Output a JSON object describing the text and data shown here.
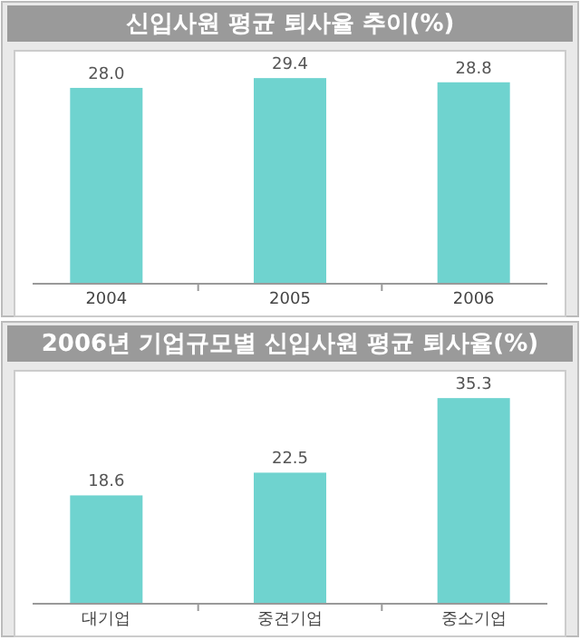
{
  "chart_data": [
    {
      "type": "bar",
      "title": "신입사원 평균 퇴사율 추이(%)",
      "categories": [
        "2004",
        "2005",
        "2006"
      ],
      "values": [
        28.0,
        29.4,
        28.8
      ],
      "value_labels": [
        "28.0",
        "29.4",
        "28.8"
      ],
      "color": "#6fd3cf"
    },
    {
      "type": "bar",
      "title": "2006년 기업규모별 신입사원 평균 퇴사율(%)",
      "categories": [
        "대기업",
        "중견기업",
        "중소기업"
      ],
      "values": [
        18.6,
        22.5,
        35.3
      ],
      "value_labels": [
        "18.6",
        "22.5",
        "35.3"
      ],
      "color": "#6fd3cf"
    }
  ]
}
